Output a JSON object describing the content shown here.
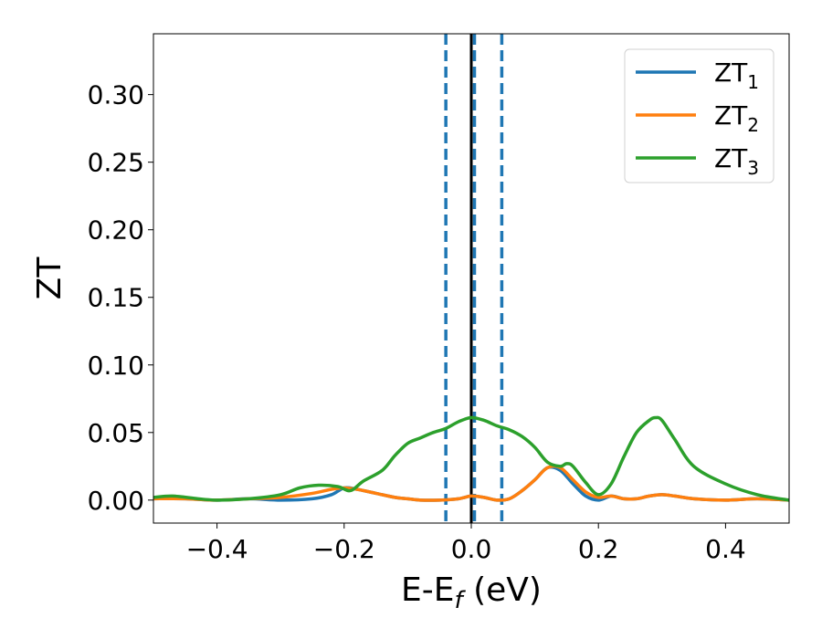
{
  "chart_data": {
    "type": "line",
    "xlabel": "E-E",
    "xlabel_sub": "f",
    "xlabel_unit": " (eV)",
    "ylabel": "ZT",
    "xlim": [
      -0.5,
      0.5
    ],
    "ylim": [
      -0.017,
      0.345
    ],
    "x_ticks": [
      -0.4,
      -0.2,
      0.0,
      0.2,
      0.4
    ],
    "x_tick_labels": [
      "−0.4",
      "−0.2",
      "0.0",
      "0.2",
      "0.4"
    ],
    "y_ticks": [
      0.0,
      0.05,
      0.1,
      0.15,
      0.2,
      0.25,
      0.3
    ],
    "y_tick_labels": [
      "0.00",
      "0.05",
      "0.10",
      "0.15",
      "0.20",
      "0.25",
      "0.30"
    ],
    "grid": false,
    "legend_position": "top-right",
    "vertical_lines": [
      {
        "x": 0.0,
        "style": "solid",
        "color": "#000000"
      },
      {
        "x": -0.04,
        "style": "dashed",
        "color": "#1f77b4"
      },
      {
        "x": 0.005,
        "style": "dashed",
        "color": "#1f77b4"
      },
      {
        "x": 0.048,
        "style": "dashed",
        "color": "#1f77b4"
      }
    ],
    "series": [
      {
        "name": "ZT",
        "name_sub": "1",
        "color": "#1f77b4",
        "x": [
          -0.5,
          -0.45,
          -0.4,
          -0.35,
          -0.3,
          -0.25,
          -0.22,
          -0.2,
          -0.18,
          -0.15,
          -0.12,
          -0.1,
          -0.08,
          -0.05,
          -0.02,
          0.0,
          0.02,
          0.04,
          0.06,
          0.08,
          0.1,
          0.12,
          0.14,
          0.16,
          0.18,
          0.2,
          0.22,
          0.24,
          0.26,
          0.28,
          0.3,
          0.32,
          0.35,
          0.4,
          0.45,
          0.5
        ],
        "y": [
          0.001,
          0.001,
          0.0,
          0.001,
          0.0,
          0.001,
          0.004,
          0.009,
          0.008,
          0.005,
          0.002,
          0.001,
          0.0,
          0.0,
          0.001,
          0.003,
          0.002,
          0.0,
          0.001,
          0.007,
          0.015,
          0.024,
          0.022,
          0.012,
          0.003,
          0.0,
          0.003,
          0.001,
          0.001,
          0.003,
          0.004,
          0.003,
          0.001,
          0.0,
          0.001,
          0.0
        ]
      },
      {
        "name": "ZT",
        "name_sub": "2",
        "color": "#ff7f0e",
        "x": [
          -0.5,
          -0.45,
          -0.4,
          -0.35,
          -0.3,
          -0.25,
          -0.22,
          -0.2,
          -0.18,
          -0.15,
          -0.12,
          -0.1,
          -0.08,
          -0.05,
          -0.02,
          0.0,
          0.02,
          0.04,
          0.06,
          0.08,
          0.1,
          0.12,
          0.14,
          0.16,
          0.18,
          0.2,
          0.22,
          0.24,
          0.26,
          0.28,
          0.3,
          0.32,
          0.35,
          0.4,
          0.45,
          0.5
        ],
        "y": [
          0.001,
          0.001,
          0.0,
          0.001,
          0.002,
          0.005,
          0.008,
          0.009,
          0.008,
          0.005,
          0.002,
          0.001,
          0.0,
          0.0,
          0.001,
          0.003,
          0.002,
          0.0,
          0.001,
          0.007,
          0.015,
          0.024,
          0.024,
          0.015,
          0.006,
          0.002,
          0.003,
          0.001,
          0.001,
          0.003,
          0.004,
          0.003,
          0.001,
          0.0,
          0.001,
          0.0
        ]
      },
      {
        "name": "ZT",
        "name_sub": "3",
        "color": "#2ca02c",
        "x": [
          -0.5,
          -0.47,
          -0.43,
          -0.4,
          -0.35,
          -0.3,
          -0.27,
          -0.24,
          -0.21,
          -0.19,
          -0.17,
          -0.14,
          -0.12,
          -0.1,
          -0.08,
          -0.06,
          -0.04,
          -0.02,
          0.0,
          0.02,
          0.04,
          0.06,
          0.08,
          0.1,
          0.12,
          0.14,
          0.15,
          0.16,
          0.18,
          0.2,
          0.22,
          0.24,
          0.26,
          0.28,
          0.29,
          0.3,
          0.32,
          0.35,
          0.4,
          0.45,
          0.5
        ],
        "y": [
          0.002,
          0.003,
          0.001,
          0.0,
          0.001,
          0.004,
          0.009,
          0.011,
          0.01,
          0.007,
          0.014,
          0.022,
          0.033,
          0.042,
          0.046,
          0.05,
          0.053,
          0.058,
          0.061,
          0.059,
          0.055,
          0.052,
          0.047,
          0.039,
          0.028,
          0.025,
          0.027,
          0.025,
          0.013,
          0.004,
          0.012,
          0.032,
          0.05,
          0.059,
          0.061,
          0.059,
          0.045,
          0.025,
          0.012,
          0.004,
          0.0
        ]
      }
    ]
  }
}
